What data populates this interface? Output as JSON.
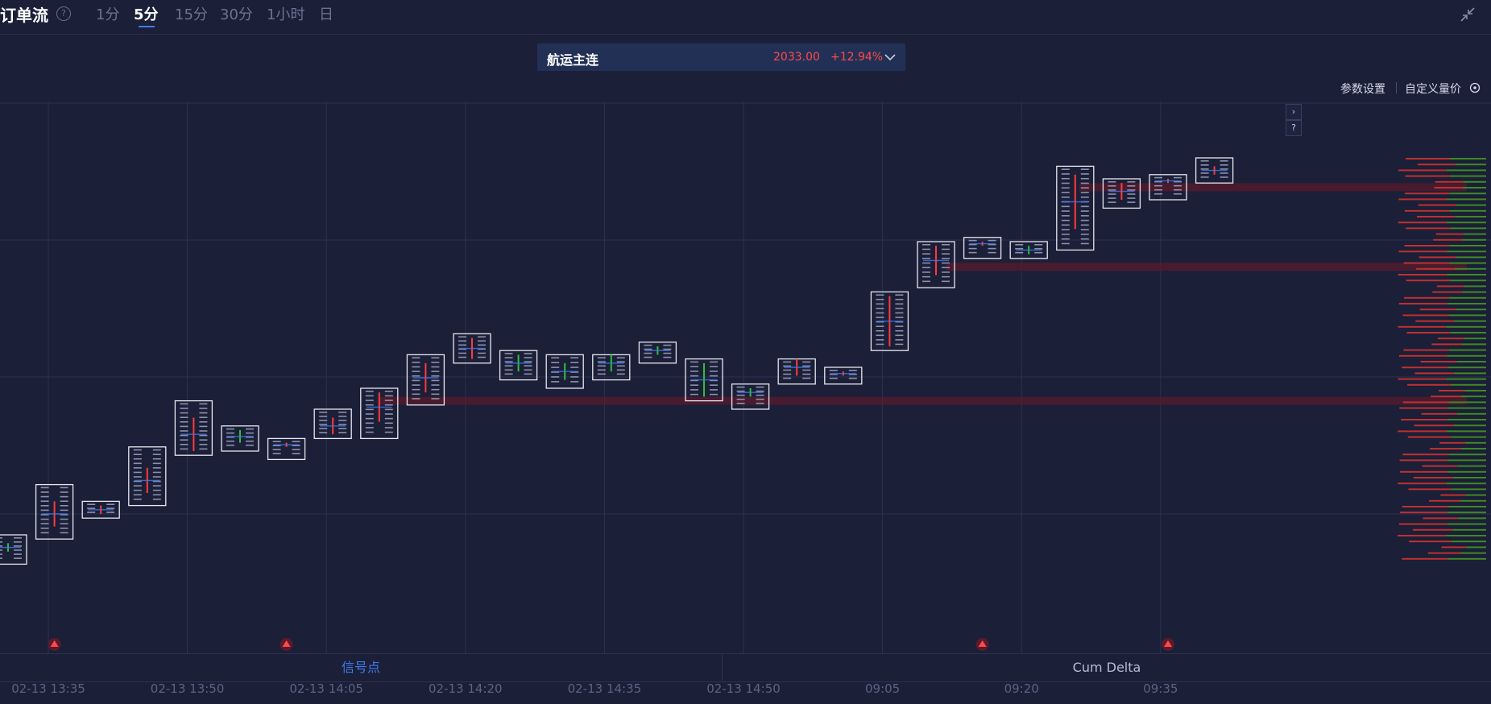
{
  "header": {
    "title": "订单流",
    "help_glyph": "?",
    "timeframes": [
      "1分",
      "5分",
      "15分",
      "30分",
      "1小时",
      "日"
    ],
    "active_timeframe": "5分"
  },
  "contract": {
    "name": "航运主连",
    "price": "2033.00",
    "change": "+12.94%"
  },
  "settings": {
    "param_label": "参数设置",
    "custom_label": "自定义量价"
  },
  "side_buttons": {
    "expand": "›",
    "help": "?"
  },
  "bottom_tabs": {
    "signal": "信号点",
    "cum_delta": "Cum Delta"
  },
  "colors": {
    "background": "#1b1f38",
    "bull": "#ff3b3b",
    "bear": "#2fbf3a",
    "accent": "#3f7bf0",
    "candle_box": "#e8e8f0",
    "grid": "#2c3150"
  },
  "chart_data": {
    "type": "footprint",
    "x_ticks": [
      "02-13 13:35",
      "02-13 13:50",
      "02-13 14:05",
      "02-13 14:20",
      "02-13 14:35",
      "02-13 14:50",
      "09:05",
      "09:20",
      "09:35"
    ],
    "grid": true,
    "candles": [
      {
        "open": 0.08,
        "close": 0.06,
        "high": 0.1,
        "low": 0.03
      },
      {
        "open": 0.12,
        "close": 0.18,
        "high": 0.22,
        "low": 0.09
      },
      {
        "open": 0.15,
        "close": 0.17,
        "high": 0.18,
        "low": 0.14
      },
      {
        "open": 0.2,
        "close": 0.26,
        "high": 0.31,
        "low": 0.17
      },
      {
        "open": 0.3,
        "close": 0.38,
        "high": 0.42,
        "low": 0.29
      },
      {
        "open": 0.35,
        "close": 0.32,
        "high": 0.36,
        "low": 0.3
      },
      {
        "open": 0.31,
        "close": 0.32,
        "high": 0.33,
        "low": 0.28
      },
      {
        "open": 0.34,
        "close": 0.38,
        "high": 0.4,
        "low": 0.33
      },
      {
        "open": 0.37,
        "close": 0.44,
        "high": 0.45,
        "low": 0.33
      },
      {
        "open": 0.44,
        "close": 0.51,
        "high": 0.53,
        "low": 0.41
      },
      {
        "open": 0.52,
        "close": 0.57,
        "high": 0.58,
        "low": 0.51
      },
      {
        "open": 0.53,
        "close": 0.49,
        "high": 0.54,
        "low": 0.47
      },
      {
        "open": 0.51,
        "close": 0.47,
        "high": 0.53,
        "low": 0.45
      },
      {
        "open": 0.53,
        "close": 0.49,
        "high": 0.53,
        "low": 0.47
      },
      {
        "open": 0.55,
        "close": 0.53,
        "high": 0.56,
        "low": 0.51
      },
      {
        "open": 0.51,
        "close": 0.43,
        "high": 0.52,
        "low": 0.42
      },
      {
        "open": 0.45,
        "close": 0.43,
        "high": 0.46,
        "low": 0.4
      },
      {
        "open": 0.48,
        "close": 0.52,
        "high": 0.52,
        "low": 0.46
      },
      {
        "open": 0.48,
        "close": 0.49,
        "high": 0.5,
        "low": 0.46
      },
      {
        "open": 0.55,
        "close": 0.67,
        "high": 0.68,
        "low": 0.54
      },
      {
        "open": 0.72,
        "close": 0.79,
        "high": 0.8,
        "low": 0.69
      },
      {
        "open": 0.79,
        "close": 0.8,
        "high": 0.81,
        "low": 0.76
      },
      {
        "open": 0.79,
        "close": 0.77,
        "high": 0.8,
        "low": 0.76
      },
      {
        "open": 0.83,
        "close": 0.96,
        "high": 0.98,
        "low": 0.78
      },
      {
        "open": 0.9,
        "close": 0.94,
        "high": 0.95,
        "low": 0.88
      },
      {
        "open": 0.94,
        "close": 0.95,
        "high": 0.96,
        "low": 0.9
      },
      {
        "open": 0.96,
        "close": 0.98,
        "high": 1.0,
        "low": 0.94
      }
    ],
    "signal_markers": [
      1,
      6,
      21,
      25
    ],
    "imbalance_zones": [
      0.93,
      0.74,
      0.42
    ]
  }
}
